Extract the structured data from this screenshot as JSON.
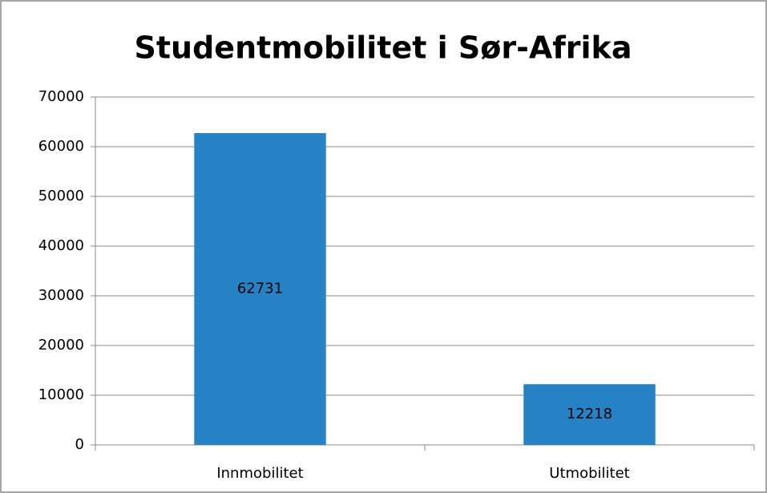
{
  "chart_data": {
    "type": "bar",
    "title": "Studentmobilitet i Sør-Afrika",
    "categories": [
      "Innmobilitet",
      "Utmobilitet"
    ],
    "values": [
      62731,
      12218
    ],
    "color": "#2681c5",
    "ylim": [
      0,
      70000
    ],
    "yticks": [
      0,
      10000,
      20000,
      30000,
      40000,
      50000,
      60000,
      70000
    ],
    "grid": true
  }
}
